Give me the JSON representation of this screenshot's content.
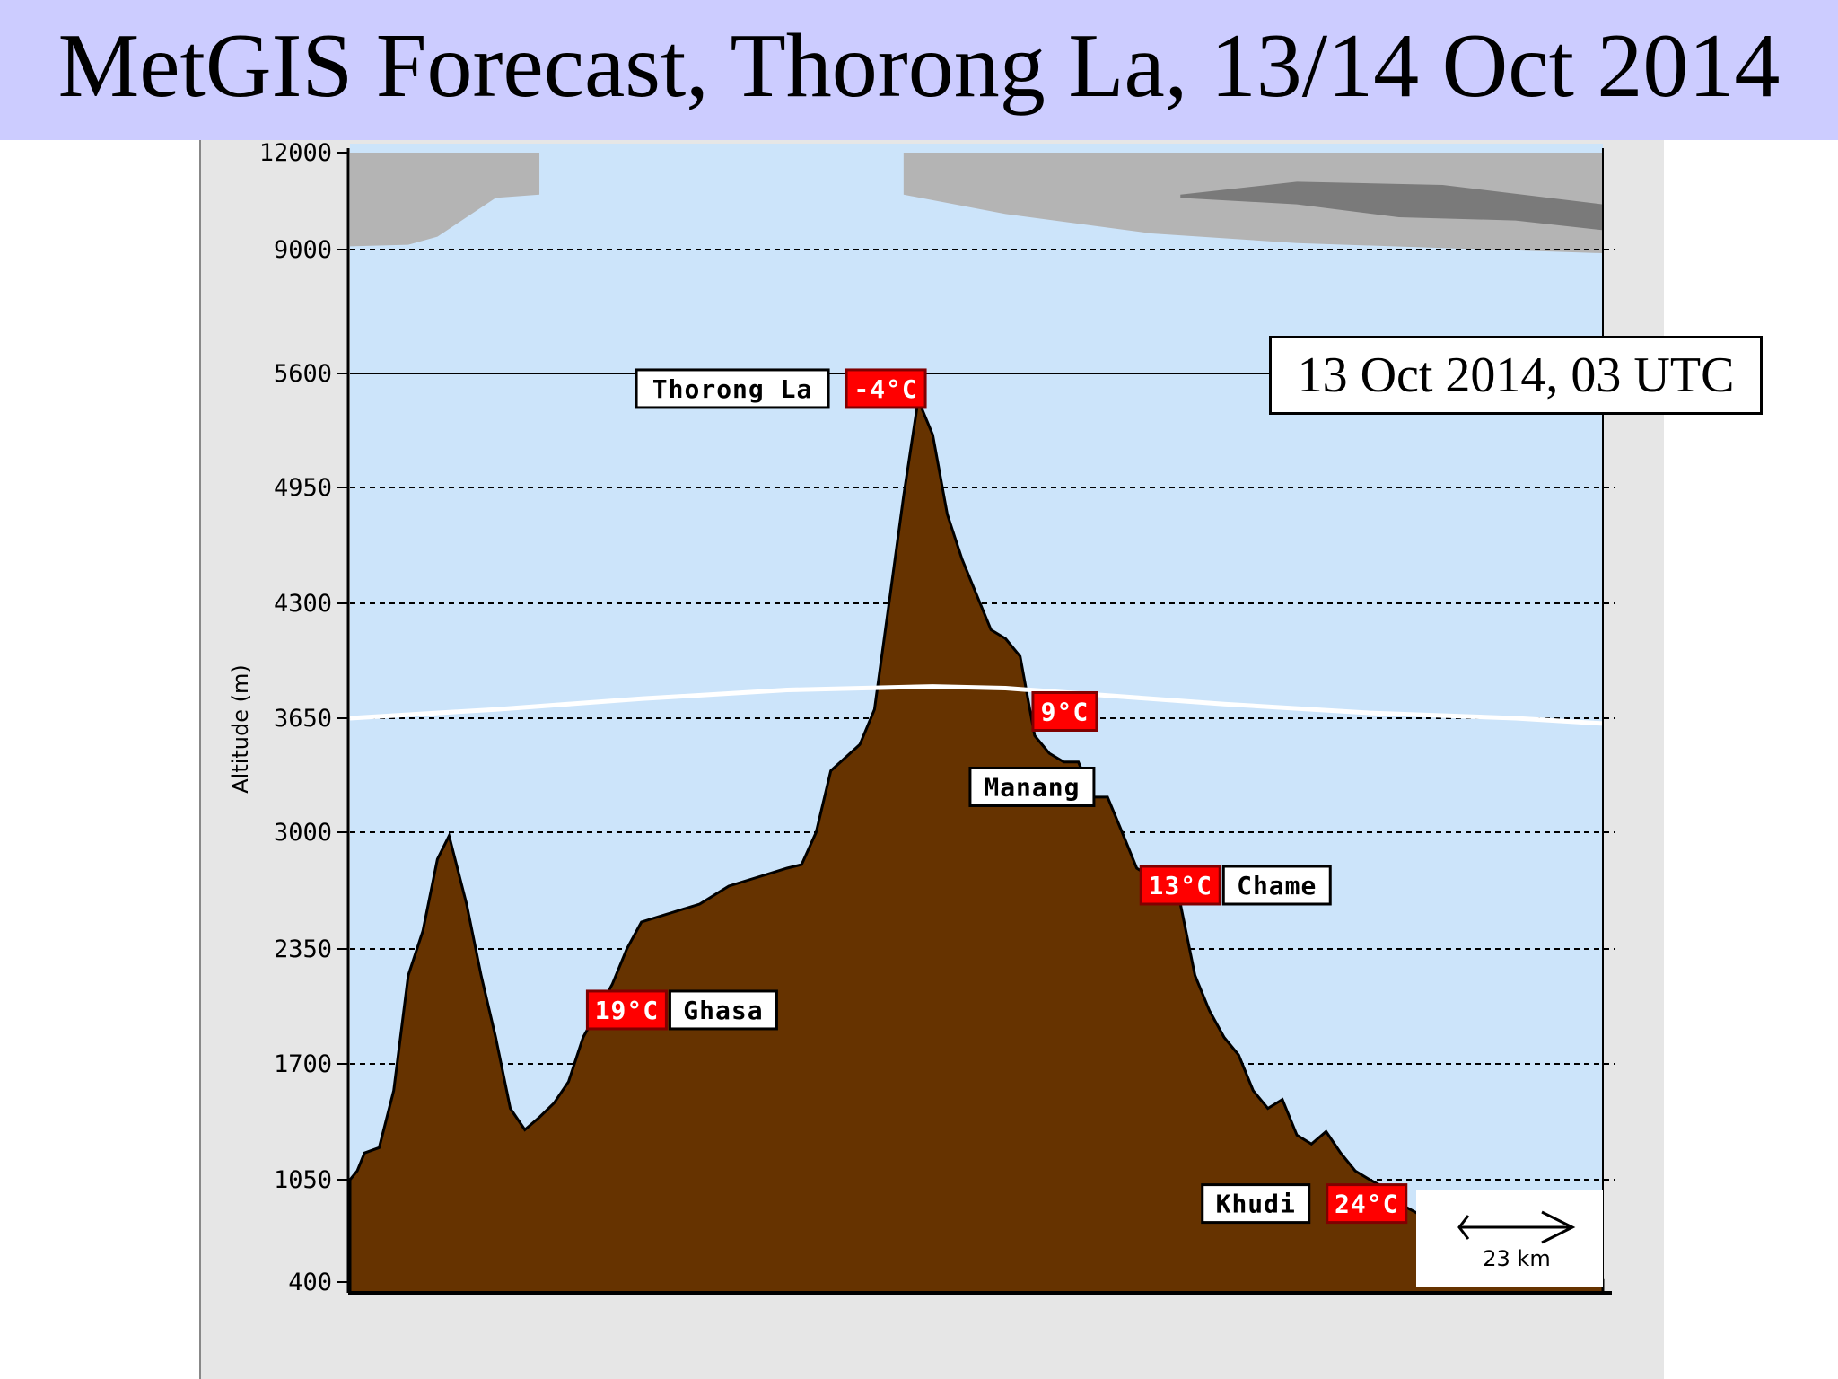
{
  "title": "MetGIS Forecast, Thorong La, 13/14 Oct 2014",
  "timestamp": "13 Oct 2014, 03 UTC",
  "colors": {
    "title_bg": "#ccccff",
    "sky": "#cce4fa",
    "terrain": "#663300",
    "cloud_light": "#b4b4b4",
    "cloud_dark": "#7a7a7a",
    "freezing_line": "#ffffff",
    "temp_label_bg": "#ff0000"
  },
  "chart_data": {
    "type": "area",
    "title": "MetGIS Forecast, Thorong La, 13/14 Oct 2014",
    "ylabel": "Altitude (m)",
    "xlabel": "",
    "yticks": [
      400,
      1050,
      1700,
      2350,
      3000,
      3650,
      4300,
      4950,
      5600,
      9000,
      12000
    ],
    "ytick_labels": [
      "400",
      "1050",
      "1700",
      "2350",
      "3000",
      "3650",
      "4300",
      "4950",
      "5600",
      "9000",
      "12000"
    ],
    "grid": "horizontal dashed",
    "scale_bar": "23 km",
    "terrain": [
      [
        0,
        1050
      ],
      [
        0.5,
        1100
      ],
      [
        1,
        1200
      ],
      [
        2,
        1230
      ],
      [
        3,
        1550
      ],
      [
        4,
        2200
      ],
      [
        5,
        2450
      ],
      [
        6,
        2850
      ],
      [
        6.8,
        2980
      ],
      [
        8,
        2600
      ],
      [
        9,
        2200
      ],
      [
        10,
        1850
      ],
      [
        11,
        1450
      ],
      [
        12,
        1330
      ],
      [
        13,
        1400
      ],
      [
        14,
        1480
      ],
      [
        15,
        1600
      ],
      [
        16,
        1850
      ],
      [
        17,
        2000
      ],
      [
        18,
        2150
      ],
      [
        19,
        2350
      ],
      [
        20,
        2500
      ],
      [
        22,
        2550
      ],
      [
        24,
        2600
      ],
      [
        26,
        2700
      ],
      [
        28,
        2750
      ],
      [
        30,
        2800
      ],
      [
        31,
        2820
      ],
      [
        32,
        3000
      ],
      [
        33,
        3350
      ],
      [
        35,
        3500
      ],
      [
        36,
        3700
      ],
      [
        37,
        4300
      ],
      [
        38,
        4900
      ],
      [
        39,
        5450
      ],
      [
        40,
        5250
      ],
      [
        41,
        4800
      ],
      [
        42,
        4550
      ],
      [
        43,
        4350
      ],
      [
        44,
        4150
      ],
      [
        45,
        4100
      ],
      [
        46,
        4000
      ],
      [
        47,
        3550
      ],
      [
        48,
        3450
      ],
      [
        49,
        3400
      ],
      [
        50,
        3400
      ],
      [
        51,
        3200
      ],
      [
        52,
        3200
      ],
      [
        53,
        3000
      ],
      [
        54,
        2800
      ],
      [
        55,
        2750
      ],
      [
        56,
        2730
      ],
      [
        57,
        2600
      ],
      [
        58,
        2200
      ],
      [
        59,
        2000
      ],
      [
        60,
        1850
      ],
      [
        61,
        1750
      ],
      [
        62,
        1550
      ],
      [
        63,
        1450
      ],
      [
        64,
        1500
      ],
      [
        65,
        1300
      ],
      [
        66,
        1250
      ],
      [
        67,
        1320
      ],
      [
        68,
        1200
      ],
      [
        69,
        1100
      ],
      [
        70,
        1050
      ],
      [
        71,
        1000
      ],
      [
        72,
        900
      ],
      [
        73,
        850
      ],
      [
        74,
        800
      ],
      [
        75,
        760
      ],
      [
        76,
        700
      ],
      [
        77,
        650
      ],
      [
        78,
        600
      ],
      [
        79,
        550
      ],
      [
        80,
        500
      ],
      [
        81,
        480
      ],
      [
        82,
        460
      ],
      [
        83,
        440
      ],
      [
        84,
        420
      ],
      [
        85,
        410
      ],
      [
        86,
        410
      ]
    ],
    "freezing_level": [
      [
        0,
        3650
      ],
      [
        10,
        3700
      ],
      [
        20,
        3760
      ],
      [
        30,
        3810
      ],
      [
        40,
        3830
      ],
      [
        45,
        3820
      ],
      [
        50,
        3790
      ],
      [
        60,
        3730
      ],
      [
        70,
        3680
      ],
      [
        80,
        3650
      ],
      [
        86,
        3620
      ]
    ],
    "clouds": [
      {
        "name": "cloud-left",
        "shade": "light",
        "top": 12000,
        "bottom": [
          [
            0,
            9100
          ],
          [
            4,
            9150
          ],
          [
            6,
            9400
          ],
          [
            8,
            10000
          ],
          [
            10,
            10600
          ],
          [
            13,
            10700
          ]
        ]
      },
      {
        "name": "cloud-right",
        "shade": "light",
        "top": 12000,
        "bottom": [
          [
            38,
            10700
          ],
          [
            45,
            10100
          ],
          [
            55,
            9500
          ],
          [
            65,
            9200
          ],
          [
            75,
            9050
          ],
          [
            86,
            8900
          ]
        ]
      },
      {
        "name": "cloud-core",
        "shade": "dark",
        "top": [
          [
            57,
            10700
          ],
          [
            65,
            11100
          ],
          [
            75,
            11000
          ],
          [
            86,
            10400
          ]
        ],
        "bottom": [
          [
            57,
            10600
          ],
          [
            65,
            10400
          ],
          [
            72,
            10000
          ],
          [
            80,
            9900
          ],
          [
            86,
            9600
          ]
        ]
      }
    ],
    "locations": [
      {
        "name": "Thorong La",
        "temp": "-4°C",
        "x": 39,
        "altitude": 5416,
        "layout": "name-left"
      },
      {
        "name": "Manang",
        "temp": "9°C",
        "x": 47,
        "altitude": 3540,
        "layout": "stacked"
      },
      {
        "name": "Chame",
        "temp": "13°C",
        "x": 57,
        "altitude": 2710,
        "layout": "temp-left"
      },
      {
        "name": "Ghasa",
        "temp": "19°C",
        "x": 19,
        "altitude": 2010,
        "layout": "temp-left"
      },
      {
        "name": "Khudi",
        "temp": "24°C",
        "x": 72,
        "altitude": 790,
        "layout": "name-left"
      }
    ]
  }
}
